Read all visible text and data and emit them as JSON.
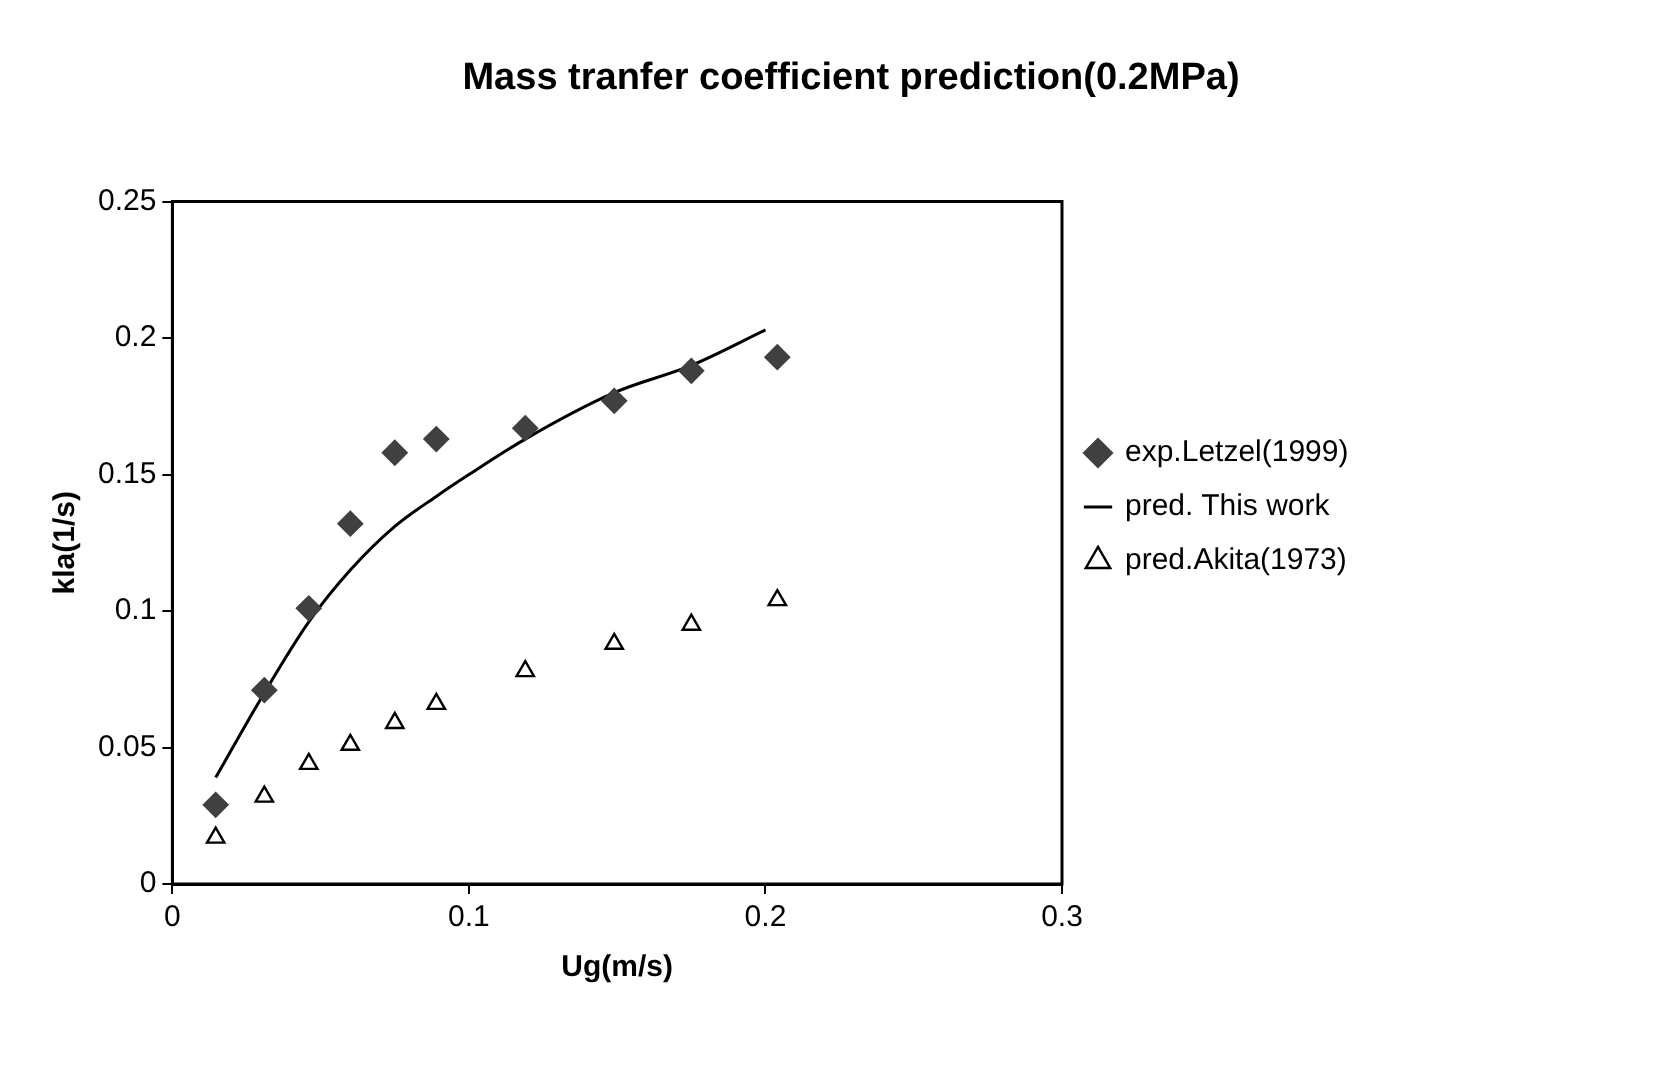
{
  "chart_data": {
    "type": "scatter",
    "title": "Mass tranfer coefficient prediction(0.2MPa)",
    "xlabel": "Ug(m/s)",
    "ylabel": "kla(1/s)",
    "xlim": [
      0,
      0.3
    ],
    "xticks": [
      0,
      0.1,
      0.2,
      0.3
    ],
    "ylim": [
      0,
      0.25
    ],
    "yticks": [
      0,
      0.05,
      0.1,
      0.15,
      0.2,
      0.25
    ],
    "grid": false,
    "legend": "right",
    "series": [
      {
        "name": "exp.Letzel(1999)",
        "marker": "diamond",
        "color": "#404040",
        "x": [
          0.0146,
          0.031,
          0.046,
          0.06,
          0.075,
          0.089,
          0.119,
          0.149,
          0.175,
          0.204
        ],
        "values": [
          0.029,
          0.071,
          0.101,
          0.132,
          0.158,
          0.163,
          0.167,
          0.177,
          0.188,
          0.193
        ]
      },
      {
        "name": "pred. This work",
        "type": "line",
        "marker": "none",
        "line_style": "solid",
        "color": "#000000",
        "x": [
          0.0146,
          0.031,
          0.046,
          0.06,
          0.075,
          0.089,
          0.1,
          0.119,
          0.149,
          0.175,
          0.2
        ],
        "values": [
          0.039,
          0.07,
          0.096,
          0.115,
          0.131,
          0.142,
          0.15,
          0.163,
          0.18,
          0.19,
          0.203
        ]
      },
      {
        "name": "pred.Akita(1973)",
        "marker": "triangle",
        "color": "#000000",
        "x": [
          0.0146,
          0.031,
          0.046,
          0.06,
          0.075,
          0.089,
          0.119,
          0.149,
          0.175,
          0.204
        ],
        "values": [
          0.017,
          0.032,
          0.044,
          0.051,
          0.059,
          0.066,
          0.078,
          0.088,
          0.095,
          0.104
        ]
      }
    ]
  }
}
